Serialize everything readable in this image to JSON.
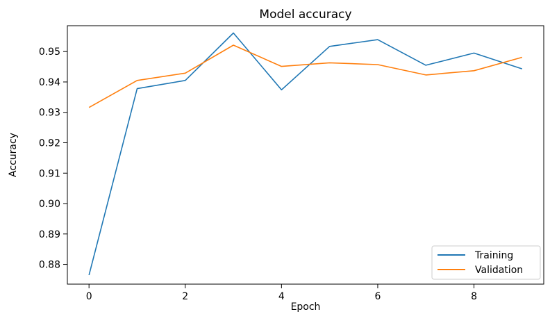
{
  "chart_data": {
    "type": "line",
    "title": "Model accuracy",
    "xlabel": "Epoch",
    "ylabel": "Accuracy",
    "x": [
      0,
      1,
      2,
      3,
      4,
      5,
      6,
      7,
      8,
      9
    ],
    "xlim": [
      -0.45,
      9.45
    ],
    "ylim": [
      0.8735,
      0.9585
    ],
    "x_ticks": [
      0,
      2,
      4,
      6,
      8
    ],
    "y_ticks": [
      0.88,
      0.89,
      0.9,
      0.91,
      0.92,
      0.93,
      0.94,
      0.95
    ],
    "x_tick_labels": [
      "0",
      "2",
      "4",
      "6",
      "8"
    ],
    "y_tick_labels": [
      "0.88",
      "0.89",
      "0.90",
      "0.91",
      "0.92",
      "0.93",
      "0.94",
      "0.95"
    ],
    "grid": false,
    "legend_position": "lower-right",
    "series": [
      {
        "name": "Training",
        "color": "#1f77b4",
        "values": [
          0.8765,
          0.9378,
          0.9405,
          0.9561,
          0.9374,
          0.9517,
          0.9539,
          0.9455,
          0.9495,
          0.9443
        ]
      },
      {
        "name": "Validation",
        "color": "#ff7f0e",
        "values": [
          0.9316,
          0.9405,
          0.9429,
          0.9521,
          0.9451,
          0.9463,
          0.9457,
          0.9423,
          0.9437,
          0.9481
        ]
      }
    ]
  }
}
